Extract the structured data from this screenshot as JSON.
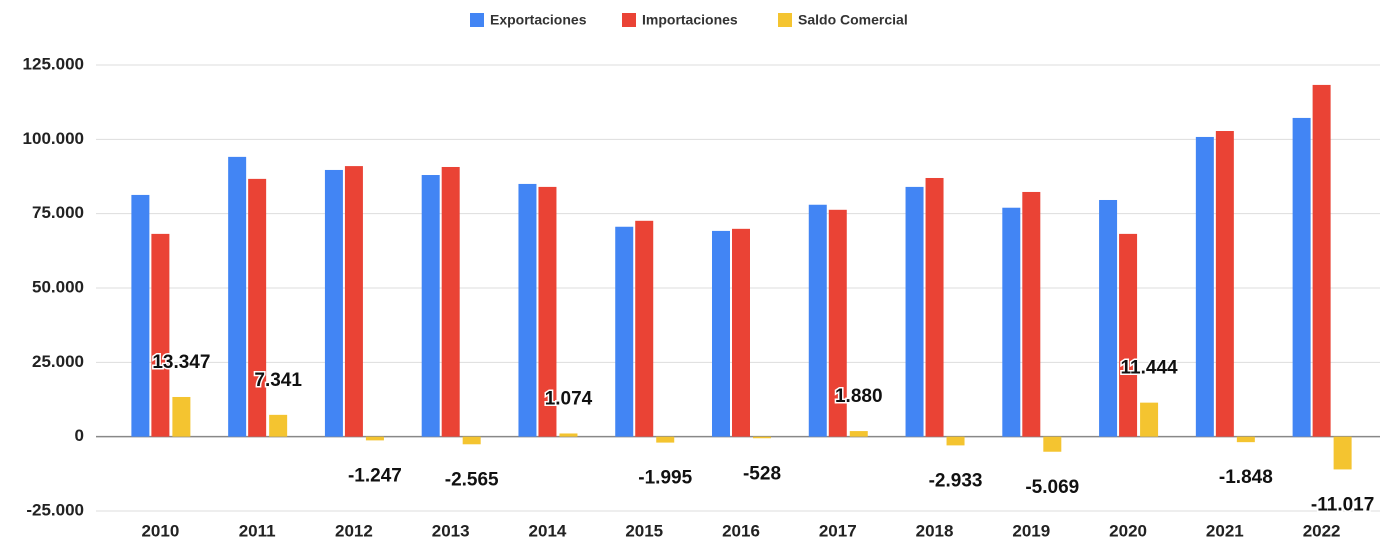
{
  "chart_data": {
    "type": "bar",
    "categories": [
      "2010",
      "2011",
      "2012",
      "2013",
      "2014",
      "2015",
      "2016",
      "2017",
      "2018",
      "2019",
      "2020",
      "2021",
      "2022"
    ],
    "series": [
      {
        "name": "Exportaciones",
        "color": "#4285f4",
        "values": [
          81300,
          94100,
          89700,
          88000,
          85000,
          70600,
          69200,
          78000,
          84000,
          77000,
          79600,
          100800,
          107200
        ]
      },
      {
        "name": "Importaciones",
        "color": "#ea4335",
        "values": [
          68200,
          86700,
          91000,
          90700,
          84000,
          72600,
          69900,
          76300,
          87000,
          82300,
          68200,
          102800,
          118300
        ]
      },
      {
        "name": "Saldo Comercial",
        "color": "#f4c430",
        "values": [
          13347,
          7341,
          -1247,
          -2565,
          1074,
          -1995,
          -528,
          1880,
          -2933,
          -5069,
          11444,
          -1848,
          -11017
        ],
        "value_labels": [
          "13.347",
          "7.341",
          "-1.247",
          "-2.565",
          "1.074",
          "-1.995",
          "-528",
          "1.880",
          "-2.933",
          "-5.069",
          "11.444",
          "-1.848",
          "-11.017"
        ]
      }
    ],
    "ylim": [
      -25000,
      125000
    ],
    "yticks": [
      {
        "value": -25000,
        "label": "-25.000"
      },
      0,
      {
        "value": 25000,
        "label": "25.000"
      },
      {
        "value": 50000,
        "label": "50.000"
      },
      {
        "value": 75000,
        "label": "75.000"
      },
      {
        "value": 100000,
        "label": "100.000"
      },
      {
        "value": 125000,
        "label": "125.000"
      }
    ],
    "grid": true,
    "legend": "top"
  }
}
